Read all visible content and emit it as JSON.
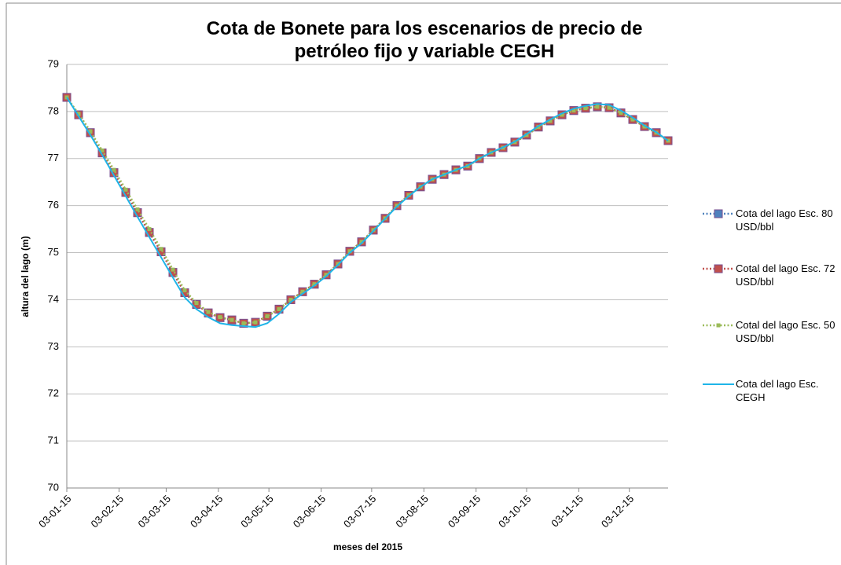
{
  "chart_data": {
    "type": "line",
    "title": "Cota de Bonete para los escenarios de precio de petróleo fijo y variable CEGH",
    "xlabel": "meses del 2015",
    "ylabel": "altura del lago (m)",
    "x": [
      "03-01-15",
      "10-01-15",
      "17-01-15",
      "24-01-15",
      "31-01-15",
      "07-02-15",
      "14-02-15",
      "21-02-15",
      "28-02-15",
      "07-03-15",
      "14-03-15",
      "21-03-15",
      "28-03-15",
      "04-04-15",
      "11-04-15",
      "18-04-15",
      "25-04-15",
      "02-05-15",
      "09-05-15",
      "16-05-15",
      "23-05-15",
      "30-05-15",
      "06-06-15",
      "13-06-15",
      "20-06-15",
      "27-06-15",
      "04-07-15",
      "11-07-15",
      "18-07-15",
      "25-07-15",
      "01-08-15",
      "08-08-15",
      "15-08-15",
      "22-08-15",
      "29-08-15",
      "05-09-15",
      "12-09-15",
      "19-09-15",
      "26-09-15",
      "03-10-15",
      "10-10-15",
      "17-10-15",
      "24-10-15",
      "31-10-15",
      "07-11-15",
      "14-11-15",
      "21-11-15",
      "28-11-15",
      "05-12-15",
      "12-12-15",
      "19-12-15",
      "26-12-15"
    ],
    "xlim": [
      "03-01-15",
      "26-12-15"
    ],
    "xticks": [
      "03-01-15",
      "03-02-15",
      "03-03-15",
      "03-04-15",
      "03-05-15",
      "03-06-15",
      "03-07-15",
      "03-08-15",
      "03-09-15",
      "03-10-15",
      "03-11-15",
      "03-12-15"
    ],
    "ylim": [
      70,
      79
    ],
    "yticks": [
      70,
      71,
      72,
      73,
      74,
      75,
      76,
      77,
      78,
      79
    ],
    "grid": true,
    "legend": "right",
    "series": [
      {
        "name": "Cota del lago Esc. 80 USD/bbl",
        "color": "#4f81bd",
        "style": "dotted",
        "marker": "square",
        "values": [
          78.3,
          77.93,
          77.55,
          77.12,
          76.7,
          76.28,
          75.85,
          75.43,
          75.02,
          74.58,
          74.15,
          73.9,
          73.72,
          73.62,
          73.57,
          73.5,
          73.52,
          73.65,
          73.8,
          74.0,
          74.17,
          74.33,
          74.53,
          74.76,
          75.03,
          75.23,
          75.48,
          75.73,
          76.0,
          76.22,
          76.4,
          76.56,
          76.66,
          76.76,
          76.84,
          77.0,
          77.13,
          77.23,
          77.35,
          77.5,
          77.67,
          77.8,
          77.93,
          78.02,
          78.07,
          78.1,
          78.08,
          77.97,
          77.83,
          77.68,
          77.55,
          77.38
        ]
      },
      {
        "name": "Cotal del lago Esc. 72 USD/bbl",
        "color": "#c0504d",
        "style": "dotted",
        "marker": "square",
        "values": [
          78.3,
          77.93,
          77.55,
          77.12,
          76.7,
          76.28,
          75.85,
          75.43,
          75.02,
          74.58,
          74.15,
          73.9,
          73.72,
          73.62,
          73.57,
          73.5,
          73.52,
          73.65,
          73.8,
          74.0,
          74.17,
          74.33,
          74.53,
          74.76,
          75.03,
          75.23,
          75.48,
          75.73,
          76.0,
          76.22,
          76.4,
          76.56,
          76.66,
          76.76,
          76.84,
          77.0,
          77.13,
          77.23,
          77.35,
          77.5,
          77.67,
          77.8,
          77.93,
          78.02,
          78.07,
          78.1,
          78.08,
          77.97,
          77.83,
          77.68,
          77.55,
          77.38
        ]
      },
      {
        "name": "Cotal del lago Esc. 50 USD/bbl",
        "color": "#9bbb59",
        "style": "dotted",
        "marker": "small-square",
        "values": [
          78.3,
          77.95,
          77.58,
          77.17,
          76.76,
          76.34,
          75.92,
          75.5,
          75.08,
          74.64,
          74.2,
          73.93,
          73.74,
          73.63,
          73.57,
          73.5,
          73.52,
          73.65,
          73.8,
          74.0,
          74.17,
          74.33,
          74.53,
          74.76,
          75.03,
          75.23,
          75.48,
          75.73,
          76.0,
          76.22,
          76.4,
          76.56,
          76.66,
          76.76,
          76.84,
          77.0,
          77.13,
          77.23,
          77.35,
          77.5,
          77.67,
          77.8,
          77.93,
          78.02,
          78.07,
          78.1,
          78.08,
          77.97,
          77.83,
          77.68,
          77.55,
          77.38
        ]
      },
      {
        "name": "Cota del lago Esc. CEGH",
        "color": "#1fb5e8",
        "style": "solid",
        "marker": "none",
        "values": [
          78.3,
          77.9,
          77.5,
          77.08,
          76.64,
          76.2,
          75.76,
          75.33,
          74.9,
          74.47,
          74.05,
          73.8,
          73.63,
          73.5,
          73.46,
          73.44,
          73.42,
          73.5,
          73.7,
          73.95,
          74.13,
          74.3,
          74.5,
          74.74,
          75.0,
          75.2,
          75.46,
          75.72,
          75.98,
          76.2,
          76.4,
          76.56,
          76.66,
          76.76,
          76.85,
          77.0,
          77.13,
          77.24,
          77.36,
          77.52,
          77.69,
          77.83,
          77.96,
          78.06,
          78.12,
          78.16,
          78.14,
          78.02,
          77.87,
          77.7,
          77.56,
          77.38
        ]
      }
    ]
  }
}
